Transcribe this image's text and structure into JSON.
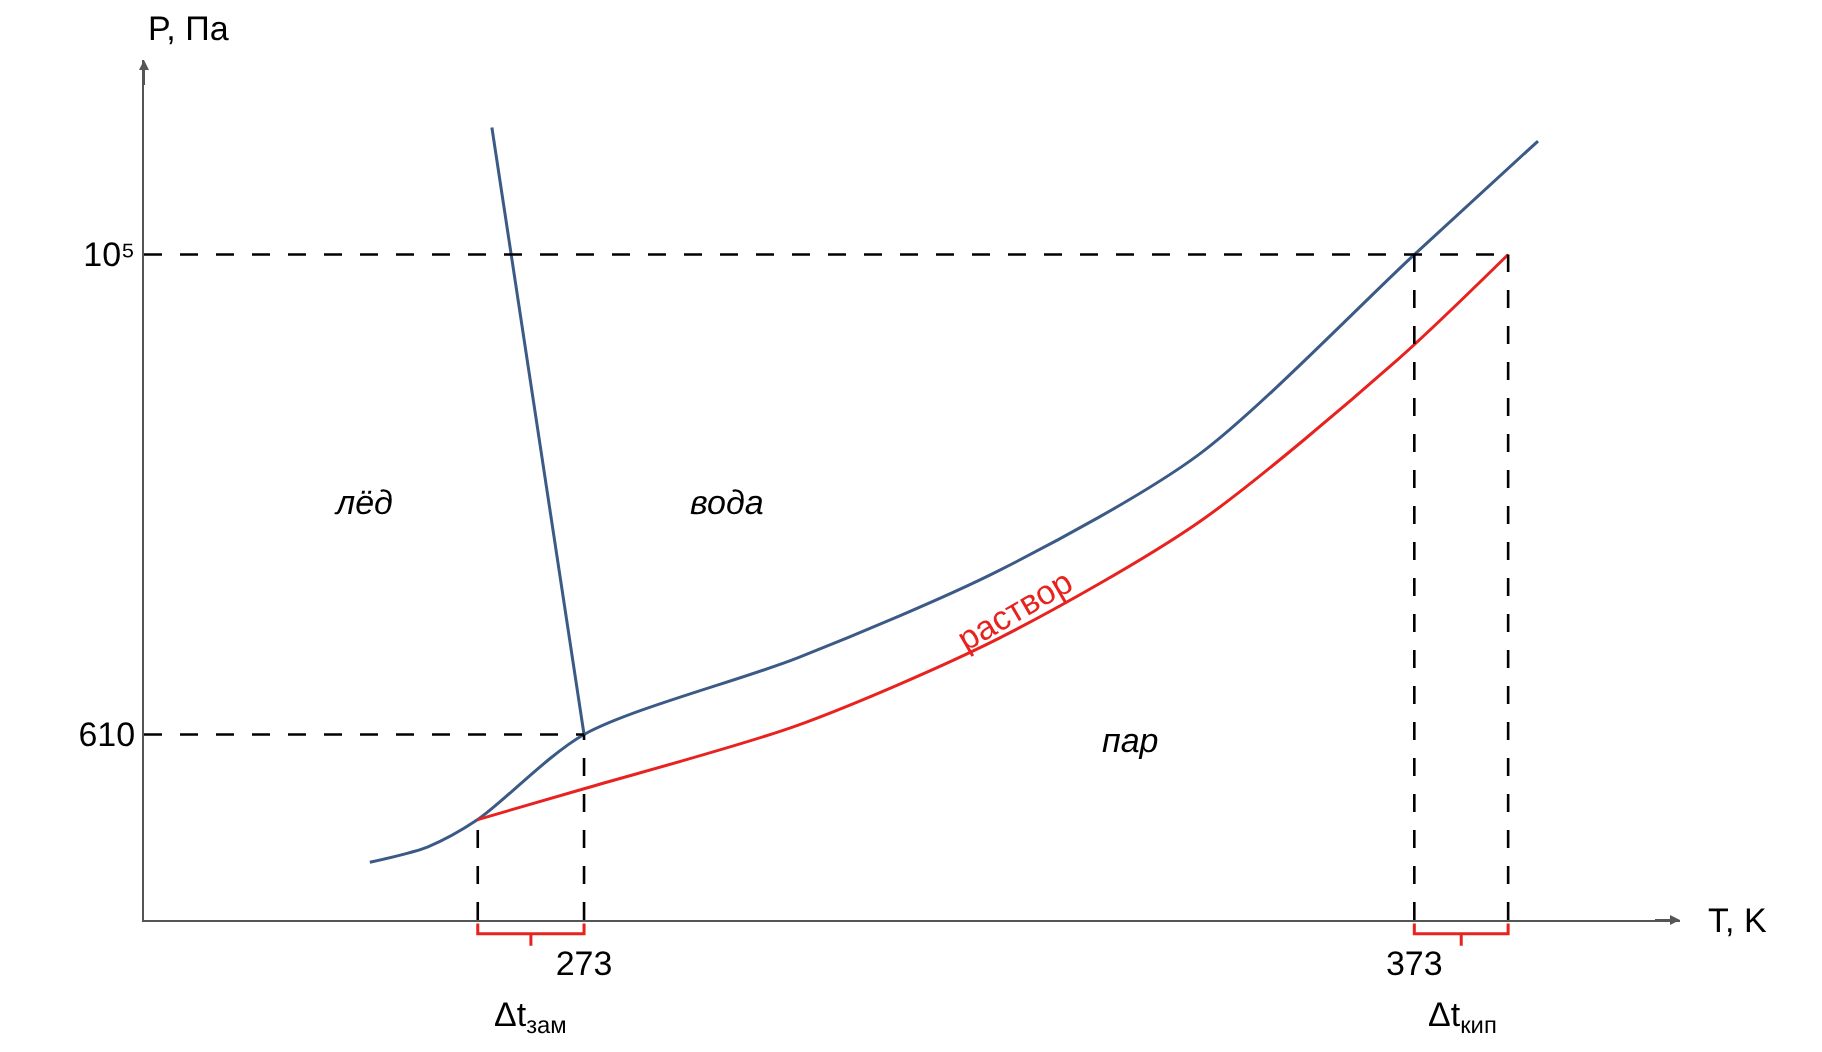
{
  "chart_data": {
    "type": "line",
    "xlabel": "T, K",
    "ylabel": "P, Па",
    "log": "y",
    "xlim": [
      220,
      405
    ],
    "ylim": [
      85,
      790000
    ],
    "xticks": [
      273,
      373
    ],
    "yticks": [
      610,
      {
        "value": 100000,
        "label": "10⁵"
      }
    ],
    "grid": false,
    "legend": false,
    "marker": "none",
    "line_style": "solid",
    "series": [
      {
        "color": "#3c5a86",
        "x": [
          247.2,
          254.2,
          260.2,
          273,
          298.8,
          322.9,
          347,
          373,
          387.9
        ],
        "values": [
          157,
          185,
          247,
          610,
          1380,
          3470,
          11900,
          100000,
          334000
        ]
      },
      {
        "color": "#3c5a86",
        "x": [
          273,
          261.9
        ],
        "values": [
          610,
          386000
        ]
      },
      {
        "name": "раствор",
        "color": "#e8231f",
        "x": [
          260.2,
          273,
          298.8,
          322.9,
          347,
          371.1,
          384.3
        ],
        "values": [
          247,
          343,
          674,
          1690,
          5800,
          33000,
          100000
        ]
      },
      {
        "type": "line",
        "line_style": "dashed",
        "color": "#000000",
        "x": [
          220,
          273
        ],
        "values": [
          610,
          610
        ]
      },
      {
        "type": "line",
        "line_style": "dashed",
        "color": "#000000",
        "x": [
          220,
          384.3
        ],
        "values": [
          100000,
          100000
        ]
      },
      {
        "type": "line",
        "line_style": "dashed",
        "color": "#000000",
        "x": [
          260.2,
          260.2
        ],
        "values": [
          85,
          247
        ]
      },
      {
        "type": "line",
        "line_style": "dashed",
        "color": "#000000",
        "x": [
          273,
          273
        ],
        "values": [
          85,
          610
        ]
      },
      {
        "type": "line",
        "line_style": "dashed",
        "color": "#000000",
        "x": [
          373,
          373
        ],
        "values": [
          85,
          100000
        ]
      },
      {
        "type": "line",
        "line_style": "dashed",
        "color": "#000000",
        "x": [
          384.3,
          384.3
        ],
        "values": [
          85,
          100000
        ]
      }
    ],
    "annotations": [
      "лёд",
      "вода",
      "пар",
      "Δt$_{зам}$",
      "Δt$_{кип}$"
    ]
  }
}
